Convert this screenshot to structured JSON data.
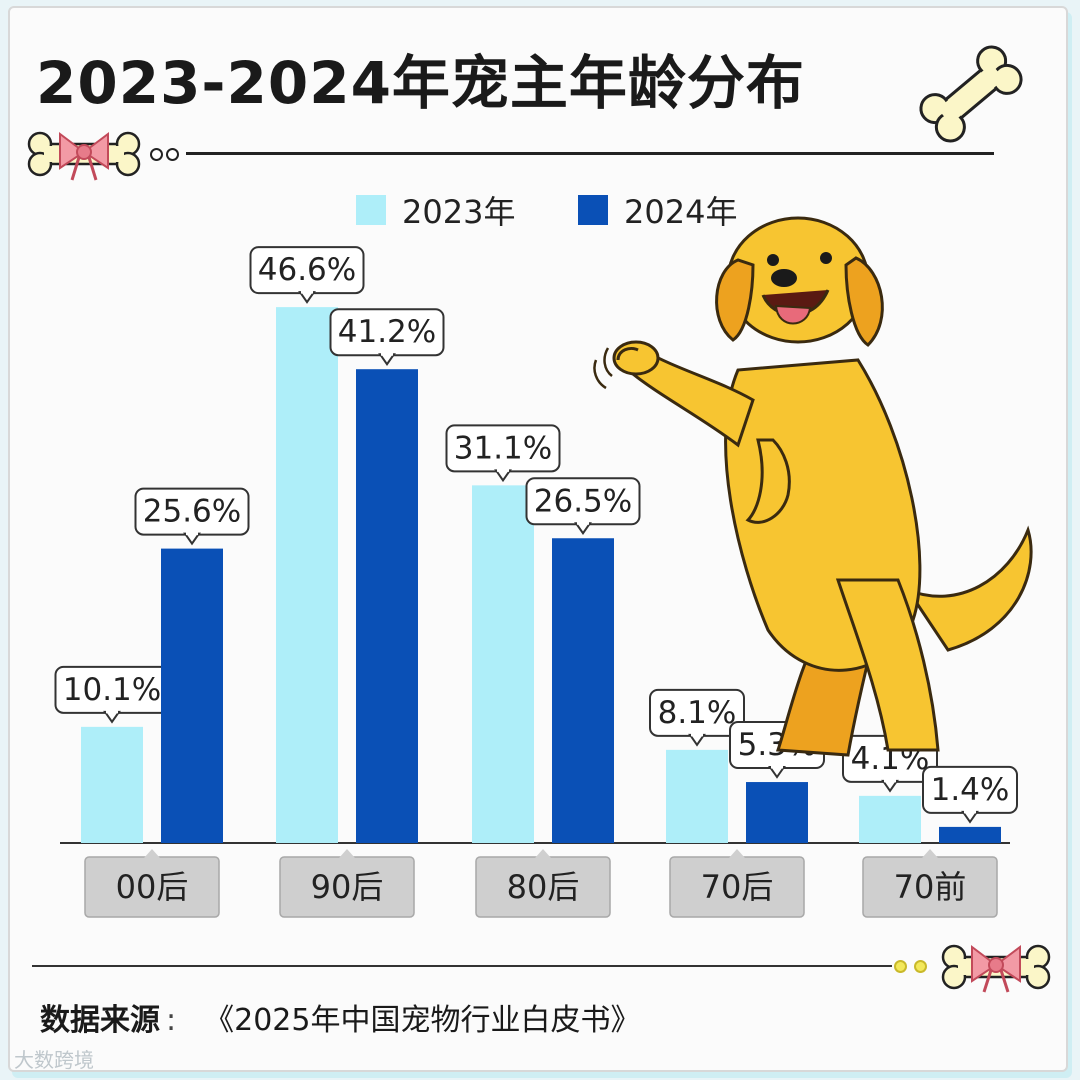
{
  "title": "2023-2024年宠主年龄分布",
  "colors": {
    "y2023": "#aeeef9",
    "y2024": "#0a50b6",
    "dog": "#f7c531",
    "dog_shade": "#eda21f"
  },
  "chart_data": {
    "type": "bar",
    "title": "2023-2024年宠主年龄分布",
    "categories": [
      "00后",
      "90后",
      "80后",
      "70后",
      "70前"
    ],
    "series": [
      {
        "name": "2023年",
        "values": [
          10.1,
          46.6,
          31.1,
          8.1,
          4.1
        ],
        "labels": [
          "10.1%",
          "46.6%",
          "31.1%",
          "8.1%",
          "4.1%"
        ]
      },
      {
        "name": "2024年",
        "values": [
          25.6,
          41.2,
          26.5,
          5.3,
          1.4
        ],
        "labels": [
          "25.6%",
          "41.2%",
          "26.5%",
          "5.3%",
          "1.4%"
        ]
      }
    ],
    "unit": "%",
    "ylim": [
      0,
      50
    ],
    "legend_position": "top-center",
    "grid": false
  },
  "source": {
    "label": "数据来源",
    "colon": ":",
    "value": "《2025年中国宠物行业白皮书》"
  },
  "watermark": "大数跨境"
}
